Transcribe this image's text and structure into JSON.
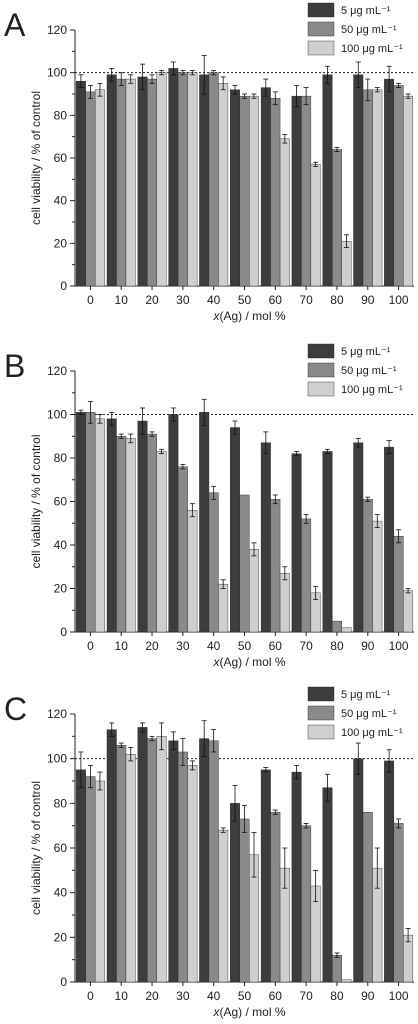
{
  "chart_data": [
    {
      "type": "bar",
      "panel_label": "A",
      "categories": [
        "0",
        "10",
        "20",
        "30",
        "40",
        "50",
        "60",
        "70",
        "80",
        "90",
        "100"
      ],
      "xlabel": "(Ag) / mol %",
      "xlabel_italic": "x",
      "ylabel": "cell viability / % of control",
      "ylim": [
        0,
        120
      ],
      "yticks": [
        "0",
        "20",
        "40",
        "60",
        "80",
        "100",
        "120"
      ],
      "reference_line": 100,
      "legend_position": "top-right",
      "colors": [
        "#3d3d3d",
        "#8a8a8a",
        "#cfcfcf"
      ],
      "series": [
        {
          "name": "5 μg mL⁻¹",
          "values": [
            96,
            99,
            98,
            102,
            99,
            92,
            93,
            89,
            99,
            99,
            97
          ],
          "errors": [
            3,
            3,
            6,
            3,
            9,
            2,
            4,
            5,
            4,
            6,
            6
          ]
        },
        {
          "name": "50 μg mL⁻¹",
          "values": [
            91,
            97,
            97,
            100,
            100,
            89,
            88,
            89,
            64,
            92,
            94
          ],
          "errors": [
            3,
            3,
            2,
            1,
            1,
            1,
            3,
            4,
            1,
            5,
            1
          ]
        },
        {
          "name": "100 μg mL⁻¹",
          "values": [
            92,
            97,
            100,
            100,
            95,
            89,
            69,
            57,
            21,
            92,
            89
          ],
          "errors": [
            3,
            2,
            1,
            1,
            3,
            1,
            2,
            1,
            3,
            1,
            1
          ]
        }
      ]
    },
    {
      "type": "bar",
      "panel_label": "B",
      "categories": [
        "0",
        "10",
        "20",
        "30",
        "40",
        "50",
        "60",
        "70",
        "80",
        "90",
        "100"
      ],
      "xlabel": "(Ag) / mol %",
      "xlabel_italic": "x",
      "ylabel": "cell viability / % of control",
      "ylim": [
        0,
        120
      ],
      "yticks": [
        "0",
        "20",
        "40",
        "60",
        "80",
        "100",
        "120"
      ],
      "reference_line": 100,
      "legend_position": "top-right",
      "colors": [
        "#3d3d3d",
        "#8a8a8a",
        "#cfcfcf"
      ],
      "series": [
        {
          "name": "5 μg mL⁻¹",
          "values": [
            101,
            98,
            97,
            100,
            101,
            94,
            87,
            82,
            83,
            87,
            85
          ],
          "errors": [
            1,
            3,
            6,
            3,
            6,
            3,
            5,
            1,
            1,
            2,
            3
          ]
        },
        {
          "name": "50 μg mL⁻¹",
          "values": [
            101,
            90,
            91,
            76,
            64,
            63,
            61,
            52,
            5,
            61,
            44
          ],
          "errors": [
            5,
            1,
            1,
            1,
            3,
            0,
            2,
            2,
            0,
            1,
            3
          ]
        },
        {
          "name": "100 μg mL⁻¹",
          "values": [
            98,
            89,
            83,
            56,
            22,
            38,
            27,
            18,
            2,
            51,
            19
          ],
          "errors": [
            2,
            2,
            1,
            3,
            2,
            3,
            3,
            3,
            0,
            3,
            1
          ]
        }
      ]
    },
    {
      "type": "bar",
      "panel_label": "C",
      "categories": [
        "0",
        "10",
        "20",
        "30",
        "40",
        "50",
        "60",
        "70",
        "80",
        "90",
        "100"
      ],
      "xlabel": "(Ag) / mol %",
      "xlabel_italic": "x",
      "ylabel": "cell viability / % of control",
      "ylim": [
        0,
        120
      ],
      "yticks": [
        "0",
        "20",
        "40",
        "60",
        "80",
        "100",
        "120"
      ],
      "reference_line": 100,
      "legend_position": "top-right",
      "colors": [
        "#3d3d3d",
        "#8a8a8a",
        "#cfcfcf"
      ],
      "series": [
        {
          "name": "5 μg mL⁻¹",
          "values": [
            95,
            113,
            114,
            108,
            109,
            80,
            95,
            94,
            87,
            100,
            99
          ],
          "errors": [
            8,
            3,
            2,
            4,
            8,
            8,
            1,
            3,
            6,
            7,
            5
          ]
        },
        {
          "name": "50 μg mL⁻¹",
          "values": [
            92,
            106,
            109,
            103,
            108,
            73,
            76,
            70,
            12,
            76,
            71
          ],
          "errors": [
            5,
            1,
            1,
            6,
            5,
            6,
            1,
            1,
            1,
            0,
            2
          ]
        },
        {
          "name": "100 μg mL⁻¹",
          "values": [
            90,
            102,
            110,
            97,
            68,
            57,
            51,
            43,
            1,
            51,
            21
          ],
          "errors": [
            4,
            3,
            6,
            2,
            1,
            10,
            9,
            7,
            0,
            9,
            3
          ]
        }
      ]
    }
  ]
}
